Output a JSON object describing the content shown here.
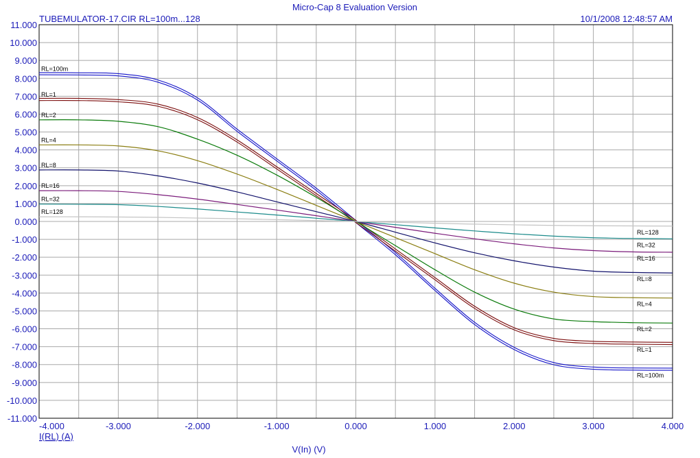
{
  "header": {
    "app_title": "Micro-Cap 8 Evaluation Version",
    "file_title": "TUBEMULATOR-17.CIR RL=100m...128",
    "timestamp": "10/1/2008 12:48:57 AM"
  },
  "colors": {
    "text": "#1a1ab8",
    "grid": "#a8a8a8",
    "frame": "#000000",
    "background": "#ffffff"
  },
  "chart_data": {
    "type": "line",
    "title": "TUBEMULATOR-17.CIR RL=100m...128",
    "xlabel": "V(In) (V)",
    "ylabel": "I(RL) (A)",
    "xlim": [
      -4,
      4
    ],
    "ylim": [
      -11,
      11
    ],
    "grid": true,
    "x_ticks": [
      "-4.000",
      "-3.000",
      "-2.000",
      "-1.000",
      "0.000",
      "1.000",
      "2.000",
      "3.000",
      "4.000"
    ],
    "y_ticks": [
      "11.000",
      "10.000",
      "9.000",
      "8.000",
      "7.000",
      "6.000",
      "5.000",
      "4.000",
      "3.000",
      "2.000",
      "1.000",
      "0.000",
      "-1.000",
      "-2.000",
      "-3.000",
      "-4.000",
      "-5.000",
      "-6.000",
      "-7.000",
      "-8.000",
      "-9.000",
      "-10.000",
      "-11.000"
    ],
    "x": [
      -4.0,
      -3.5,
      -3.0,
      -2.5,
      -2.0,
      -1.5,
      -1.0,
      -0.5,
      0.0,
      0.5,
      1.0,
      1.5,
      2.0,
      2.5,
      3.0,
      3.5,
      4.0
    ],
    "series": [
      {
        "name": "RL=100m",
        "color": "#1212c8",
        "double": true,
        "values": [
          8.26,
          8.25,
          8.2,
          7.85,
          6.85,
          5.1,
          3.45,
          1.8,
          0.0,
          -1.8,
          -3.8,
          -5.7,
          -7.1,
          -7.95,
          -8.2,
          -8.25,
          -8.26
        ]
      },
      {
        "name": "RL=1",
        "color": "#7a0a0a",
        "double": true,
        "values": [
          6.82,
          6.82,
          6.75,
          6.5,
          5.75,
          4.5,
          3.0,
          1.5,
          0.0,
          -1.6,
          -3.2,
          -4.8,
          -6.0,
          -6.6,
          -6.76,
          -6.8,
          -6.82
        ]
      },
      {
        "name": "RL=2",
        "color": "#0a7a0a",
        "double": false,
        "values": [
          5.68,
          5.68,
          5.6,
          5.3,
          4.6,
          3.7,
          2.6,
          1.35,
          0.0,
          -1.35,
          -2.7,
          -3.95,
          -4.9,
          -5.45,
          -5.6,
          -5.66,
          -5.68
        ]
      },
      {
        "name": "RL=4",
        "color": "#8a7d10",
        "double": false,
        "values": [
          4.28,
          4.28,
          4.22,
          3.95,
          3.4,
          2.65,
          1.8,
          0.9,
          0.0,
          -0.9,
          -1.8,
          -2.7,
          -3.45,
          -3.95,
          -4.2,
          -4.26,
          -4.28
        ]
      },
      {
        "name": "RL=8",
        "color": "#10106a",
        "double": false,
        "values": [
          2.88,
          2.88,
          2.82,
          2.55,
          2.15,
          1.65,
          1.1,
          0.55,
          0.0,
          -0.6,
          -1.2,
          -1.75,
          -2.2,
          -2.55,
          -2.78,
          -2.85,
          -2.88
        ]
      },
      {
        "name": "RL=16",
        "color": "#7a1a7a",
        "double": false,
        "values": [
          1.72,
          1.72,
          1.68,
          1.5,
          1.25,
          0.95,
          0.64,
          0.32,
          0.0,
          -0.33,
          -0.66,
          -0.97,
          -1.25,
          -1.48,
          -1.63,
          -1.7,
          -1.72
        ]
      },
      {
        "name": "RL=32",
        "color": "#1a8a8a",
        "double": false,
        "values": [
          0.97,
          0.96,
          0.94,
          0.84,
          0.7,
          0.53,
          0.36,
          0.18,
          0.0,
          -0.18,
          -0.36,
          -0.53,
          -0.69,
          -0.82,
          -0.91,
          -0.95,
          -0.97
        ]
      },
      {
        "name": "RL=128",
        "color": "#c4c4c4",
        "double": false,
        "values": [
          0.26,
          0.26,
          0.25,
          0.23,
          0.19,
          0.15,
          0.1,
          0.05,
          0.0,
          -0.05,
          -0.1,
          -0.15,
          -0.19,
          -0.22,
          -0.24,
          -0.25,
          -0.26
        ]
      }
    ]
  }
}
